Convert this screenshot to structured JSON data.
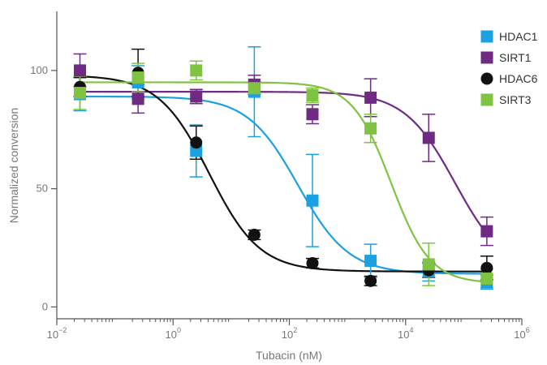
{
  "chart_data": {
    "type": "scatter",
    "title": "",
    "xlabel": "Tubacin (nM)",
    "ylabel": "Normalized conversion",
    "x_scale": "log",
    "xlim": [
      0.01,
      1000000
    ],
    "ylim": [
      -5,
      125
    ],
    "x_ticks": [
      {
        "value": 0.01,
        "base": "10",
        "exp": "−2"
      },
      {
        "value": 1,
        "base": "10",
        "exp": "0"
      },
      {
        "value": 100,
        "base": "10",
        "exp": "2"
      },
      {
        "value": 10000,
        "base": "10",
        "exp": "4"
      },
      {
        "value": 1000000,
        "base": "10",
        "exp": "6"
      }
    ],
    "y_ticks": [
      {
        "value": 0,
        "label": "0"
      },
      {
        "value": 50,
        "label": "50"
      },
      {
        "value": 100,
        "label": "100"
      }
    ],
    "grid": false,
    "legend_position": "top-right",
    "x": [
      0.025,
      0.25,
      2.5,
      25,
      250,
      2500,
      25000,
      250000
    ],
    "series": [
      {
        "name": "HDAC1",
        "color": "#1ba1e2",
        "marker": "square",
        "y": [
          90,
          95,
          66,
          91,
          45,
          19.5,
          15,
          10.5
        ],
        "err": [
          7,
          7,
          11,
          19,
          19.5,
          7,
          4,
          3
        ],
        "fit": {
          "bottom": 14,
          "top": 89,
          "log_ic50": 2.15,
          "hill": 1
        }
      },
      {
        "name": "SIRT1",
        "color": "#6f2b84",
        "marker": "square",
        "y": [
          100,
          88,
          89,
          94,
          81.5,
          88.5,
          71.5,
          32
        ],
        "err": [
          7,
          6,
          3,
          4,
          4,
          8,
          10,
          6
        ],
        "fit": {
          "bottom": 14,
          "top": 91,
          "log_ic50": 4.85,
          "hill": 1
        }
      },
      {
        "name": "HDAC6",
        "color": "#111111",
        "marker": "circle",
        "y": [
          93,
          99,
          69.5,
          30.5,
          18.5,
          11,
          15.5,
          16.5
        ],
        "err": [
          4,
          10,
          7,
          2,
          2,
          2,
          3,
          5
        ],
        "fit": {
          "bottom": 15,
          "top": 98,
          "log_ic50": 0.62,
          "hill": 1
        }
      },
      {
        "name": "SIRT3",
        "color": "#80c342",
        "marker": "square",
        "y": [
          90.5,
          97,
          100,
          92.5,
          89.5,
          75.5,
          18,
          12
        ],
        "err": [
          7,
          6,
          4,
          3,
          3,
          6,
          9,
          4
        ],
        "fit": {
          "bottom": 10,
          "top": 95,
          "log_ic50": 3.75,
          "hill": 1.3
        }
      }
    ]
  }
}
